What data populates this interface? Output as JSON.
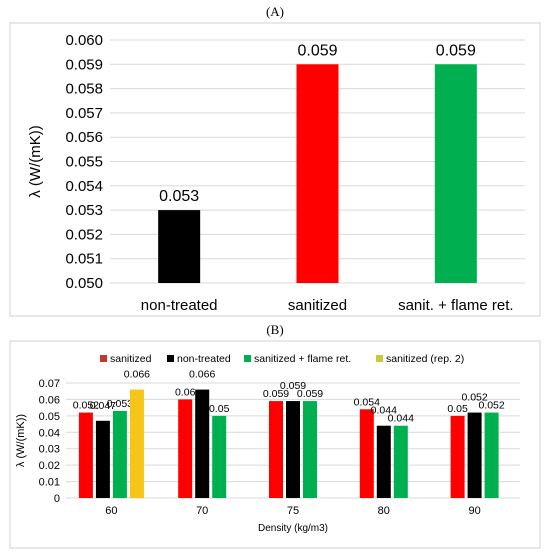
{
  "panel_labels": {
    "a": "(A)",
    "b": "(B)"
  },
  "chart_data": [
    {
      "type": "bar",
      "panel": "A",
      "title": "",
      "xlabel": "",
      "ylabel": "λ (W/(mK))",
      "ylim": [
        0.05,
        0.06
      ],
      "yticks": [
        "0.050",
        "0.051",
        "0.052",
        "0.053",
        "0.054",
        "0.055",
        "0.056",
        "0.057",
        "0.058",
        "0.059",
        "0.060"
      ],
      "grid": true,
      "categories": [
        "non-treated",
        "sanitized",
        "sanit. + flame ret."
      ],
      "values": [
        0.053,
        0.059,
        0.059
      ],
      "data_labels": [
        "0.053",
        "0.059",
        "0.059"
      ],
      "colors": [
        "#000000",
        "#ff0000",
        "#00b050"
      ]
    },
    {
      "type": "bar",
      "panel": "B",
      "title": "",
      "xlabel": "Density (kg/m3)",
      "ylabel": "λ (W/(mK))",
      "ylim": [
        0,
        0.07
      ],
      "yticks": [
        "0",
        "0.01",
        "0.02",
        "0.03",
        "0.04",
        "0.05",
        "0.06",
        "0.07"
      ],
      "grid": true,
      "legend_position": "top",
      "categories": [
        "60",
        "70",
        "75",
        "80",
        "90"
      ],
      "series": [
        {
          "name": "sanitized",
          "color": "#ff0000",
          "legend_color": "#c0392b",
          "values": [
            0.052,
            0.06,
            0.059,
            0.054,
            0.05
          ],
          "labels": [
            "0.052",
            "0.06",
            "0.059",
            "0.054",
            "0.05"
          ]
        },
        {
          "name": "non-treated",
          "color": "#000000",
          "legend_color": "#000000",
          "values": [
            0.047,
            0.066,
            0.059,
            0.044,
            0.052
          ],
          "labels": [
            "0.047",
            "0.066",
            "0.059",
            "0.044",
            "0.052"
          ]
        },
        {
          "name": "sanitized + flame ret.",
          "color": "#00b050",
          "legend_color": "#00b050",
          "values": [
            0.053,
            0.05,
            0.059,
            0.044,
            0.052
          ],
          "labels": [
            "0.053",
            "0.05",
            "0.059",
            "0.044",
            "0.052"
          ]
        },
        {
          "name": "sanitized (rep. 2)",
          "color": "#f5c518",
          "legend_color": "#c9c93a",
          "values": [
            0.066,
            null,
            null,
            null,
            null
          ],
          "labels": [
            "0.066",
            "",
            "",
            "",
            ""
          ]
        }
      ]
    }
  ]
}
